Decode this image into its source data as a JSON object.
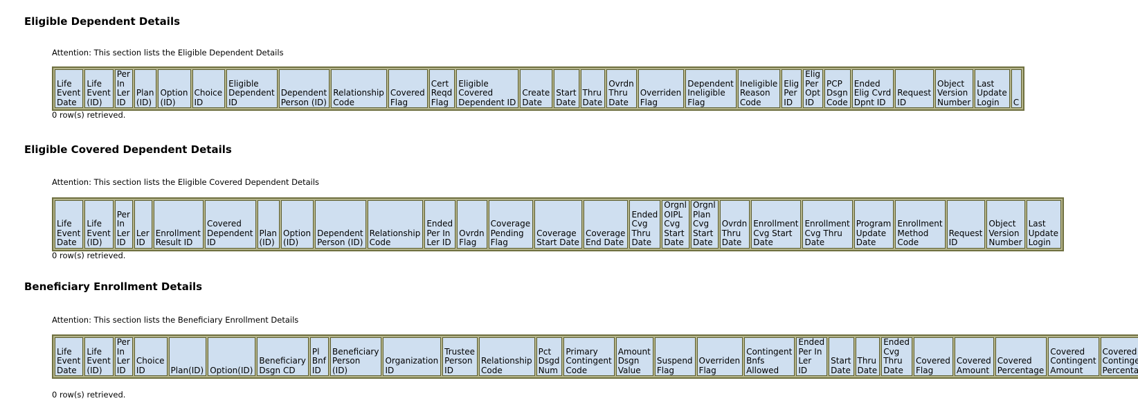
{
  "sections": [
    {
      "title": "Eligible Dependent Details",
      "attention": "Attention: This section lists the Eligible Dependent Details",
      "headers": [
        [
          "Life",
          "Event",
          "Date"
        ],
        [
          "Life",
          "Event",
          "(ID)"
        ],
        [
          "Per",
          "In",
          "Ler",
          "ID"
        ],
        [
          "Plan",
          "(ID)"
        ],
        [
          "Option",
          "(ID)"
        ],
        [
          "Choice",
          "ID"
        ],
        [
          "Eligible",
          "Dependent",
          "ID"
        ],
        [
          "Dependent",
          "Person (ID)"
        ],
        [
          "Relationship",
          "Code"
        ],
        [
          "Covered",
          "Flag"
        ],
        [
          "Cert",
          "Reqd",
          "Flag"
        ],
        [
          "Eligible",
          "Covered",
          "Dependent ID"
        ],
        [
          "Create",
          "Date"
        ],
        [
          "Start",
          "Date"
        ],
        [
          "Thru",
          "Date"
        ],
        [
          "Ovrdn",
          "Thru",
          "Date"
        ],
        [
          "Overriden",
          "Flag"
        ],
        [
          "Dependent",
          "Ineligible",
          "Flag"
        ],
        [
          "Ineligible",
          "Reason",
          "Code"
        ],
        [
          "Elig",
          "Per",
          "ID"
        ],
        [
          "Elig",
          "Per",
          "Opt",
          "ID"
        ],
        [
          "PCP",
          "Dsgn",
          "Code"
        ],
        [
          "Ended",
          "Elig Cvrd",
          "Dpnt ID"
        ],
        [
          "Request",
          "ID"
        ],
        [
          "Object",
          "Version",
          "Number"
        ],
        [
          "Last",
          "Update",
          "Login"
        ],
        [
          "C"
        ]
      ],
      "rows_text": "0 row(s) retrieved."
    },
    {
      "title": "Eligible Covered Dependent Details",
      "attention": "Attention: This section lists the Eligible Covered Dependent Details",
      "headers": [
        [
          "Life",
          "Event",
          "Date"
        ],
        [
          "Life",
          "Event",
          "(ID)"
        ],
        [
          "Per",
          "In",
          "Ler",
          "ID"
        ],
        [
          "Ler",
          "ID"
        ],
        [
          "Enrollment",
          "Result ID"
        ],
        [
          "Covered",
          "Dependent",
          "ID"
        ],
        [
          "Plan",
          "(ID)"
        ],
        [
          "Option",
          "(ID)"
        ],
        [
          "Dependent",
          "Person (ID)"
        ],
        [
          "Relationship",
          "Code"
        ],
        [
          "Ended",
          "Per In",
          "Ler ID"
        ],
        [
          "Ovrdn",
          "Flag"
        ],
        [
          "Coverage",
          "Pending",
          "Flag"
        ],
        [
          "Coverage",
          "Start Date"
        ],
        [
          "Coverage",
          "End Date"
        ],
        [
          "Ended",
          "Cvg",
          "Thru",
          "Date"
        ],
        [
          "Orgnl",
          "OIPL",
          "Cvg",
          "Start",
          "Date"
        ],
        [
          "Orgnl",
          "Plan",
          "Cvg",
          "Start",
          "Date"
        ],
        [
          "Ovrdn",
          "Thru",
          "Date"
        ],
        [
          "Enrollment",
          "Cvg Start",
          "Date"
        ],
        [
          "Enrollment",
          "Cvg Thru",
          "Date"
        ],
        [
          "Program",
          "Update",
          "Date"
        ],
        [
          "Enrollment",
          "Method",
          "Code"
        ],
        [
          "Request",
          "ID"
        ],
        [
          "Object",
          "Version",
          "Number"
        ],
        [
          "Last",
          "Update",
          "Login"
        ]
      ],
      "rows_text": "0 row(s) retrieved."
    },
    {
      "title": "Beneficiary Enrollment Details",
      "attention": "Attention: This section lists the Beneficiary Enrollment Details",
      "headers": [
        [
          "Life",
          "Event",
          "Date"
        ],
        [
          "Life",
          "Event",
          "(ID)"
        ],
        [
          "Per",
          "In",
          "Ler",
          "ID"
        ],
        [
          "Choice",
          "ID"
        ],
        [
          "Plan(ID)"
        ],
        [
          "Option(ID)"
        ],
        [
          "Beneficiary",
          "Dsgn CD"
        ],
        [
          "Pl",
          "Bnf",
          "ID"
        ],
        [
          "Beneficiary",
          "Person",
          "(ID)"
        ],
        [
          "Organization",
          "ID"
        ],
        [
          "Trustee",
          "Person",
          "ID"
        ],
        [
          "Relationship",
          "Code"
        ],
        [
          "Pct",
          "Dsgd",
          "Num"
        ],
        [
          "Primary",
          "Contingent",
          "Code"
        ],
        [
          "Amount",
          "Dsgn",
          "Value"
        ],
        [
          "Suspend",
          "Flag"
        ],
        [
          "Overriden",
          "Flag"
        ],
        [
          "Contingent",
          "Bnfs",
          "Allowed"
        ],
        [
          "Ended",
          "Per In",
          "Ler",
          "ID"
        ],
        [
          "Start",
          "Date"
        ],
        [
          "Thru",
          "Date"
        ],
        [
          "Ended",
          "Cvg",
          "Thru",
          "Date"
        ],
        [
          "Covered",
          "Flag"
        ],
        [
          "Covered",
          "Amount"
        ],
        [
          "Covered",
          "Percentage"
        ],
        [
          "Covered",
          "Contingent",
          "Amount"
        ],
        [
          "Covered",
          "Contingent",
          "Percentage"
        ]
      ],
      "rows_text": "0 row(s) retrieved."
    }
  ]
}
